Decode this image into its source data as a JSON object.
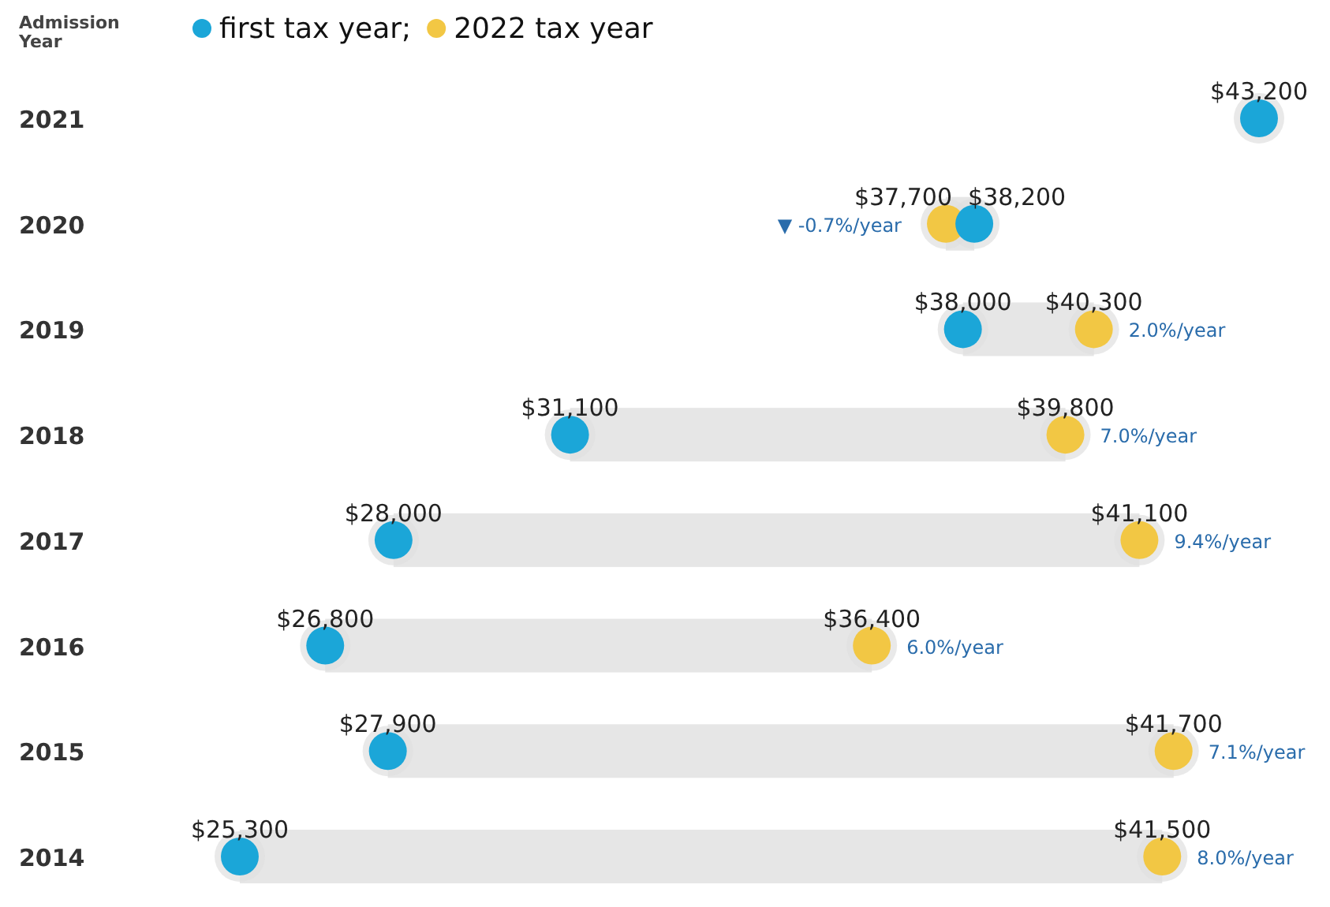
{
  "chart_data": {
    "type": "scatter",
    "orientation": "horizontal",
    "ylabel": "Admission Year",
    "categories": [
      "2021",
      "2020",
      "2019",
      "2018",
      "2017",
      "2016",
      "2015",
      "2014"
    ],
    "series": [
      {
        "name": "first tax year;",
        "color": "#1ba6d8",
        "values": [
          43200,
          38200,
          38000,
          31100,
          28000,
          26800,
          27900,
          25300
        ],
        "value_labels": [
          "$43,200",
          "$38,200",
          "$38,000",
          "$31,100",
          "$28,000",
          "$26,800",
          "$27,900",
          "$25,300"
        ]
      },
      {
        "name": "2022 tax year",
        "color": "#f2c744",
        "values": [
          null,
          37700,
          40300,
          39800,
          41100,
          36400,
          41700,
          41500
        ],
        "value_labels": [
          null,
          "$37,700",
          "$40,300",
          "$39,800",
          "$41,100",
          "$36,400",
          "$41,700",
          "$41,500"
        ]
      }
    ],
    "annotations": [
      {
        "text": "▼ -0.7%/year",
        "x": 37700,
        "y": "2020"
      },
      {
        "text": "2.0%/year",
        "x": 40300,
        "y": "2019"
      },
      {
        "text": "7.0%/year",
        "x": 39800,
        "y": "2018"
      },
      {
        "text": "9.4%/year",
        "x": 41100,
        "y": "2017"
      },
      {
        "text": "6.0%/year",
        "x": 36400,
        "y": "2016"
      },
      {
        "text": "7.1%/year",
        "x": 41700,
        "y": "2015"
      },
      {
        "text": "8.0%/year",
        "x": 41500,
        "y": "2014"
      }
    ],
    "legend": "top left",
    "marker": "circle"
  }
}
